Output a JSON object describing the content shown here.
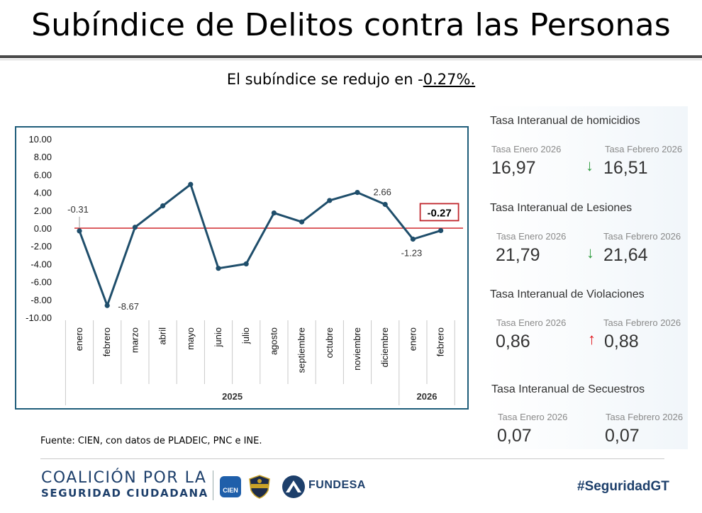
{
  "header": {
    "title": "Subíndice de Delitos contra las Personas",
    "subtitle_prefix": "El subíndice se redujo en -",
    "subtitle_value": "0.27%."
  },
  "chart_data": {
    "type": "line",
    "title": "",
    "xlabel": "",
    "ylabel": "",
    "ylim": [
      -10,
      10
    ],
    "y_ticks": [
      "10.00",
      "8.00",
      "6.00",
      "4.00",
      "2.00",
      "0.00",
      "-2.00",
      "-4.00",
      "-6.00",
      "-8.00",
      "-10.00"
    ],
    "categories": [
      "enero",
      "febrero",
      "marzo",
      "abril",
      "mayo",
      "junio",
      "julio",
      "agosto",
      "septiembre",
      "octubre",
      "noviembre",
      "diciembre",
      "enero",
      "febrero"
    ],
    "groups": [
      {
        "label": "2025",
        "count": 12
      },
      {
        "label": "2026",
        "count": 2
      }
    ],
    "series": [
      {
        "values": [
          -0.31,
          -8.67,
          0.1,
          2.5,
          4.9,
          -4.5,
          -4.0,
          1.7,
          0.7,
          3.1,
          4.0,
          2.66,
          -1.23,
          -0.27
        ]
      }
    ],
    "data_labels": [
      {
        "index": 0,
        "text": "-0.31"
      },
      {
        "index": 1,
        "text": "-8.67"
      },
      {
        "index": 11,
        "text": "2.66"
      },
      {
        "index": 12,
        "text": "-1.23"
      },
      {
        "index": 13,
        "text": "-0.27",
        "highlight": true
      }
    ],
    "reference_line": 0,
    "colors": {
      "line": "#1f4e6b",
      "reference": "#d0282d",
      "highlight_box": "#c0272d",
      "border": "#1f5d7a"
    },
    "grid": false
  },
  "source": "Fuente: CIEN, con datos de PLADEIC, PNC e INE.",
  "panel": {
    "sections": [
      {
        "title": "Tasa Interanual de homicidios",
        "label_a": "Tasa Enero 2026",
        "label_b": "Tasa Febrero 2026",
        "value_a": "16,97",
        "value_b": "16,51",
        "trend": "down",
        "arrow": "↓"
      },
      {
        "title": "Tasa Interanual de Lesiones",
        "label_a": "Tasa Enero 2026",
        "label_b": "Tasa Febrero 2026",
        "value_a": "21,79",
        "value_b": "21,64",
        "trend": "down",
        "arrow": "↓"
      },
      {
        "title": "Tasa Interanual de Violaciones",
        "label_a": "Tasa Enero 2026",
        "label_b": "Tasa Febrero 2026",
        "value_a": "0,86",
        "value_b": "0,88",
        "trend": "up",
        "arrow": "↑"
      },
      {
        "title": "Tasa Interanual de Secuestros",
        "label_a": "Tasa Enero 2026",
        "label_b": "Tasa Febrero 2026",
        "value_a": "0,07",
        "value_b": "0,07",
        "trend": "none",
        "arrow": ""
      }
    ]
  },
  "footer": {
    "logo_line1": "COALICIÓN POR LA",
    "logo_line2": "SEGURIDAD CIUDADANA",
    "cien_label": "CIEN",
    "fundesa_label": "FUNDESA",
    "hashtag": "#SeguridadGT"
  }
}
